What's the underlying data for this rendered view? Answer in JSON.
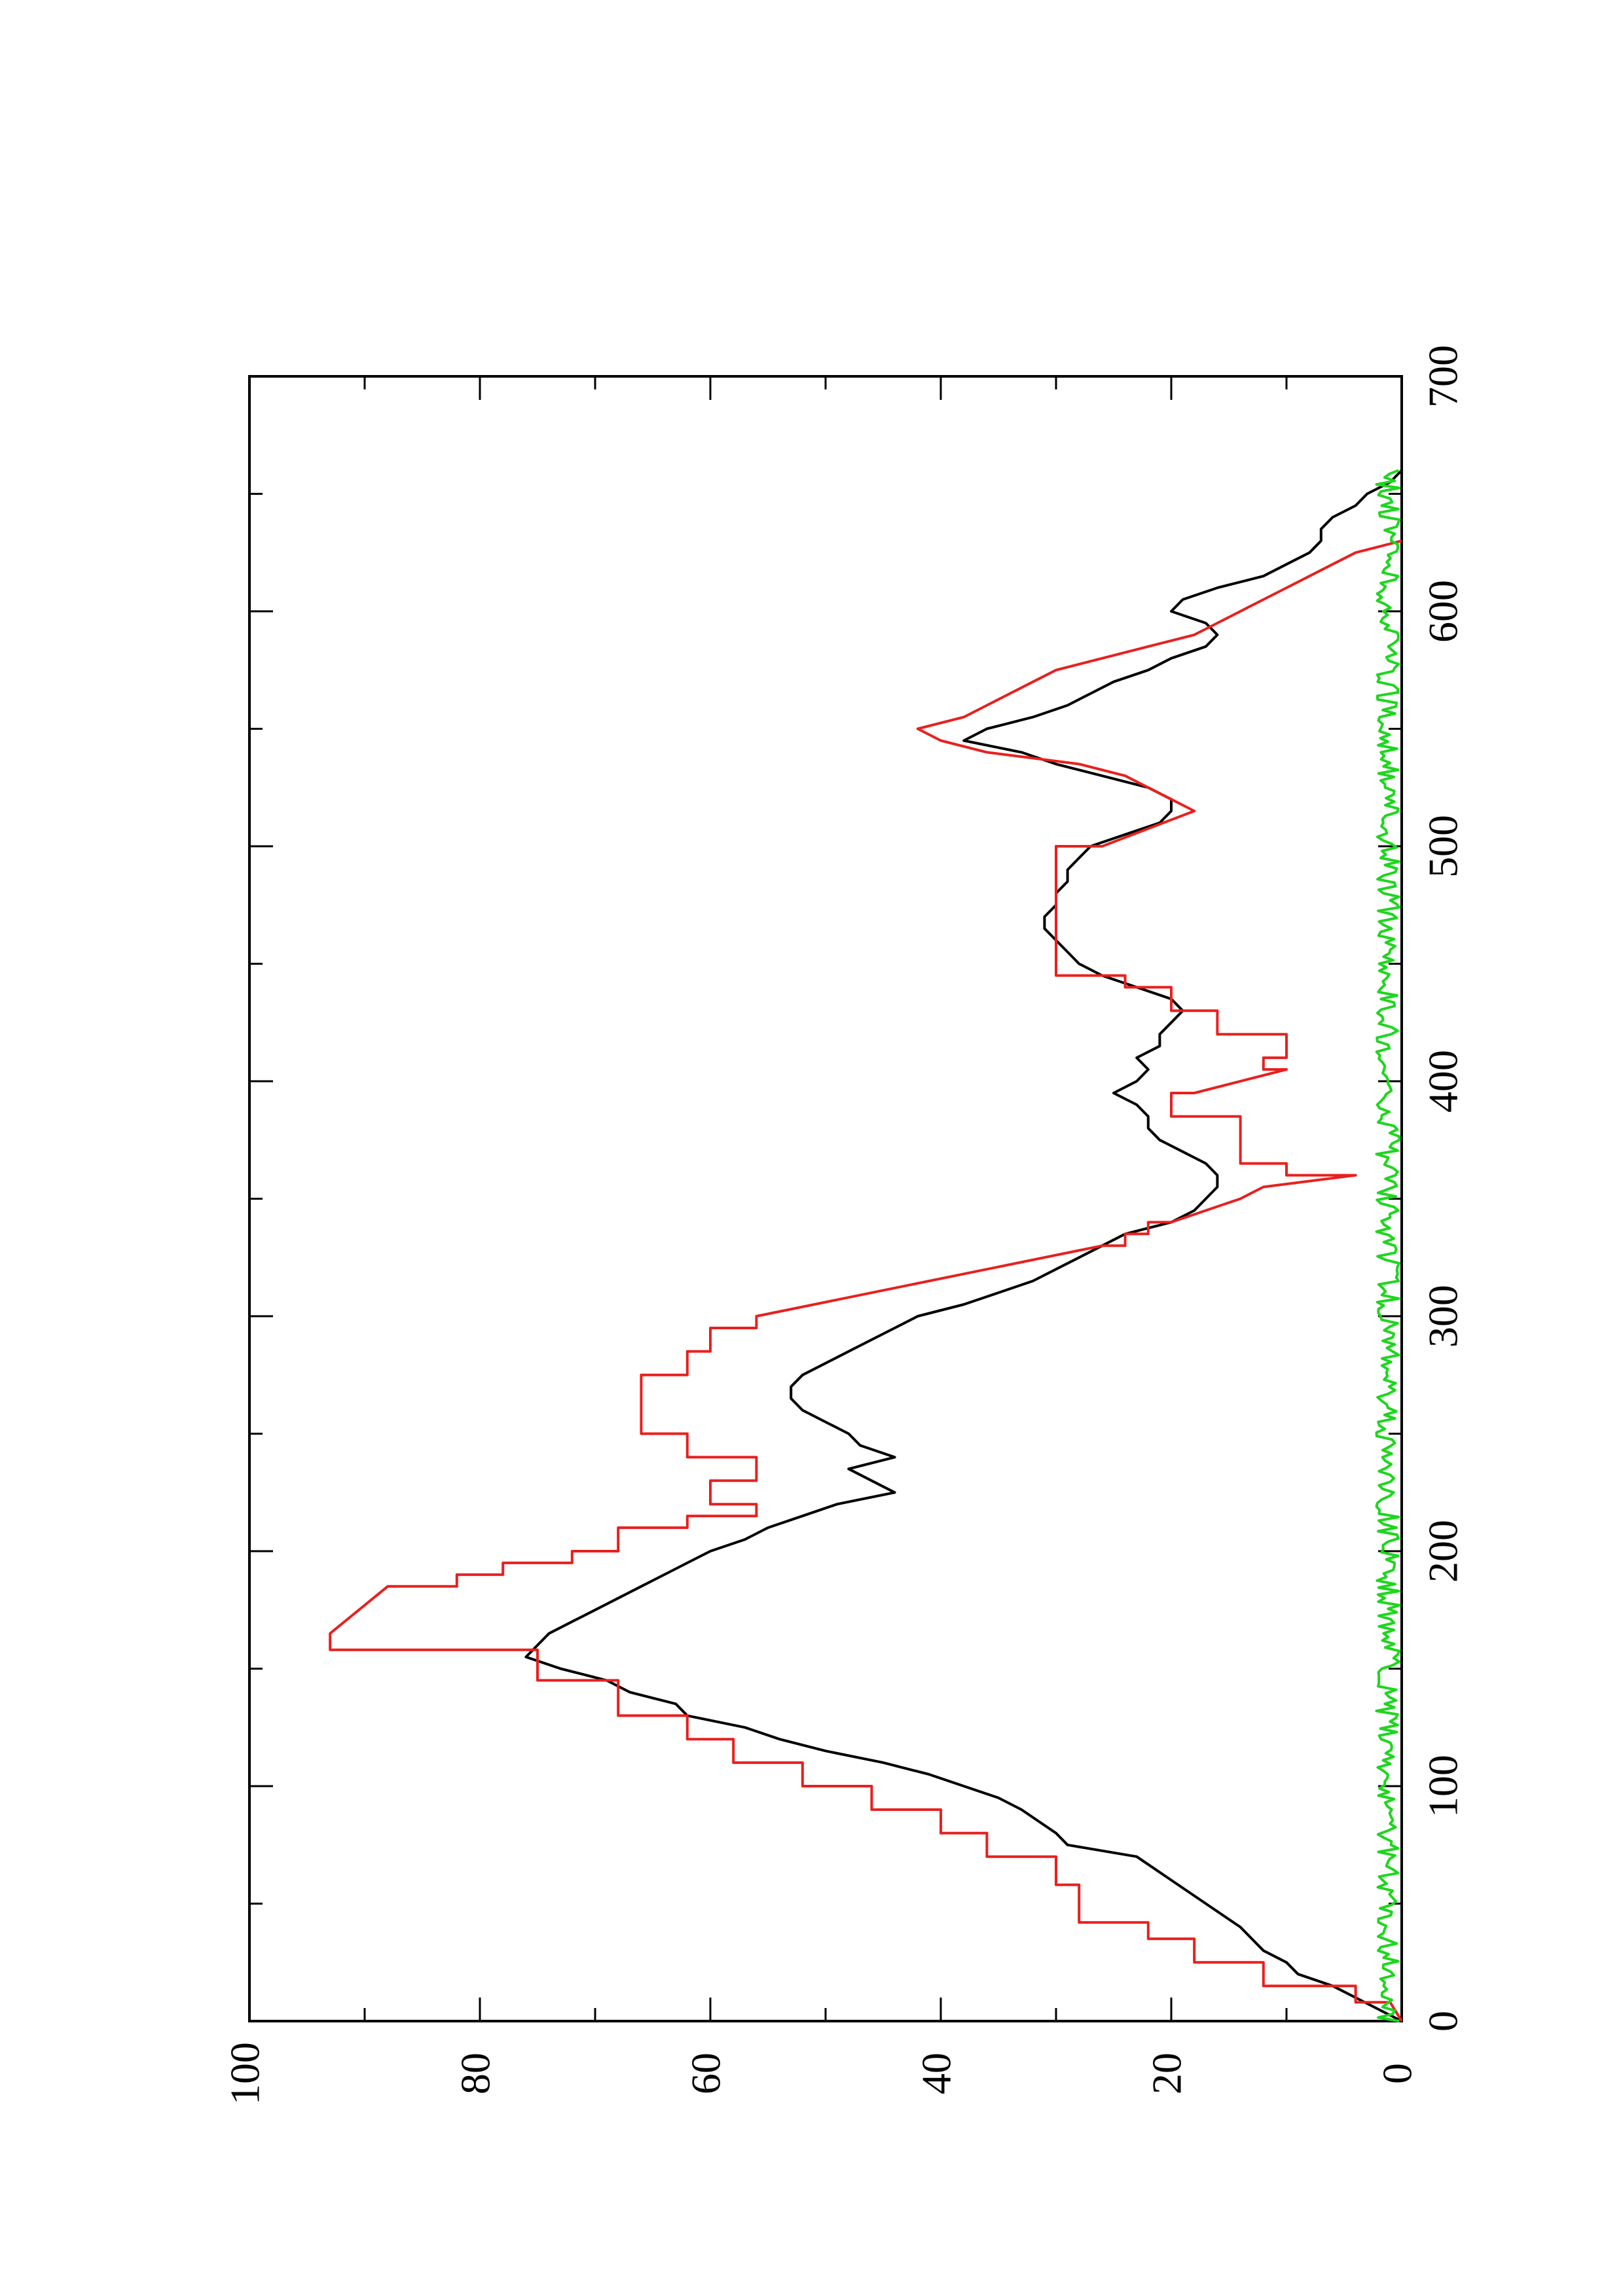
{
  "chart_data": {
    "type": "line",
    "orientation": "rotated-90-ccw",
    "title": "",
    "xlabel": "",
    "ylabel": "",
    "xlim": [
      0,
      700
    ],
    "ylim": [
      0,
      100
    ],
    "x_ticks": [
      0,
      100,
      200,
      300,
      400,
      500,
      600,
      700
    ],
    "y_ticks": [
      0,
      20,
      40,
      60,
      80,
      100
    ],
    "x_tick_labels": [
      "0",
      "100",
      "200",
      "300",
      "400",
      "500",
      "600",
      "700"
    ],
    "y_tick_labels": [
      "0",
      "20",
      "40",
      "60",
      "80",
      "100"
    ],
    "grid": false,
    "legend": "none",
    "series": [
      {
        "color": "#000000",
        "points": [
          [
            0,
            0
          ],
          [
            5,
            2
          ],
          [
            10,
            4
          ],
          [
            15,
            6
          ],
          [
            20,
            9
          ],
          [
            25,
            10
          ],
          [
            30,
            12
          ],
          [
            40,
            14
          ],
          [
            50,
            17
          ],
          [
            60,
            20
          ],
          [
            70,
            23
          ],
          [
            75,
            29
          ],
          [
            80,
            30
          ],
          [
            90,
            33
          ],
          [
            95,
            35
          ],
          [
            100,
            38
          ],
          [
            105,
            41
          ],
          [
            110,
            45
          ],
          [
            115,
            50
          ],
          [
            120,
            54
          ],
          [
            125,
            57
          ],
          [
            130,
            62
          ],
          [
            135,
            63
          ],
          [
            140,
            67
          ],
          [
            145,
            69
          ],
          [
            150,
            73
          ],
          [
            155,
            76
          ],
          [
            160,
            75
          ],
          [
            165,
            74
          ],
          [
            170,
            72
          ],
          [
            175,
            70
          ],
          [
            180,
            68
          ],
          [
            185,
            66
          ],
          [
            190,
            64
          ],
          [
            195,
            62
          ],
          [
            200,
            60
          ],
          [
            205,
            57
          ],
          [
            210,
            55
          ],
          [
            215,
            52
          ],
          [
            220,
            49
          ],
          [
            225,
            44
          ],
          [
            230,
            46
          ],
          [
            235,
            48
          ],
          [
            240,
            44
          ],
          [
            245,
            47
          ],
          [
            250,
            48
          ],
          [
            255,
            50
          ],
          [
            260,
            52
          ],
          [
            265,
            53
          ],
          [
            270,
            53
          ],
          [
            275,
            52
          ],
          [
            280,
            50
          ],
          [
            285,
            48
          ],
          [
            290,
            46
          ],
          [
            295,
            44
          ],
          [
            300,
            42
          ],
          [
            305,
            38
          ],
          [
            310,
            35
          ],
          [
            315,
            32
          ],
          [
            320,
            30
          ],
          [
            325,
            28
          ],
          [
            330,
            26
          ],
          [
            335,
            24
          ],
          [
            340,
            20
          ],
          [
            345,
            18
          ],
          [
            350,
            17
          ],
          [
            355,
            16
          ],
          [
            360,
            16
          ],
          [
            365,
            17
          ],
          [
            370,
            19
          ],
          [
            375,
            21
          ],
          [
            380,
            22
          ],
          [
            385,
            22
          ],
          [
            390,
            23
          ],
          [
            395,
            25
          ],
          [
            400,
            23
          ],
          [
            405,
            22
          ],
          [
            410,
            23
          ],
          [
            415,
            21
          ],
          [
            420,
            21
          ],
          [
            425,
            20
          ],
          [
            430,
            19
          ],
          [
            435,
            20
          ],
          [
            440,
            23
          ],
          [
            445,
            26
          ],
          [
            450,
            28
          ],
          [
            455,
            29
          ],
          [
            460,
            30
          ],
          [
            465,
            31
          ],
          [
            470,
            31
          ],
          [
            475,
            30
          ],
          [
            480,
            30
          ],
          [
            485,
            29
          ],
          [
            490,
            29
          ],
          [
            495,
            28
          ],
          [
            500,
            27
          ],
          [
            505,
            24
          ],
          [
            510,
            21
          ],
          [
            515,
            20
          ],
          [
            520,
            20
          ],
          [
            525,
            22
          ],
          [
            530,
            26
          ],
          [
            535,
            30
          ],
          [
            540,
            33
          ],
          [
            545,
            38
          ],
          [
            550,
            36
          ],
          [
            555,
            32
          ],
          [
            560,
            29
          ],
          [
            565,
            27
          ],
          [
            570,
            25
          ],
          [
            575,
            22
          ],
          [
            580,
            20
          ],
          [
            585,
            17
          ],
          [
            590,
            16
          ],
          [
            595,
            17
          ],
          [
            600,
            20
          ],
          [
            605,
            19
          ],
          [
            610,
            16
          ],
          [
            615,
            12
          ],
          [
            620,
            10
          ],
          [
            625,
            8
          ],
          [
            630,
            7
          ],
          [
            635,
            7
          ],
          [
            640,
            6
          ],
          [
            645,
            4
          ],
          [
            650,
            3
          ],
          [
            655,
            1
          ],
          [
            660,
            0
          ]
        ]
      },
      {
        "color": "#e8201e",
        "points": [
          [
            0,
            0
          ],
          [
            8,
            1
          ],
          [
            8,
            4
          ],
          [
            15,
            4
          ],
          [
            15,
            12
          ],
          [
            25,
            12
          ],
          [
            25,
            18
          ],
          [
            35,
            18
          ],
          [
            35,
            22
          ],
          [
            42,
            22
          ],
          [
            42,
            28
          ],
          [
            58,
            28
          ],
          [
            58,
            30
          ],
          [
            70,
            30
          ],
          [
            70,
            36
          ],
          [
            80,
            36
          ],
          [
            80,
            40
          ],
          [
            90,
            40
          ],
          [
            90,
            46
          ],
          [
            100,
            46
          ],
          [
            100,
            52
          ],
          [
            110,
            52
          ],
          [
            110,
            58
          ],
          [
            120,
            58
          ],
          [
            120,
            62
          ],
          [
            130,
            62
          ],
          [
            130,
            68
          ],
          [
            145,
            68
          ],
          [
            145,
            75
          ],
          [
            158,
            75
          ],
          [
            158,
            93
          ],
          [
            165,
            93
          ],
          [
            185,
            88
          ],
          [
            185,
            82
          ],
          [
            190,
            82
          ],
          [
            190,
            78
          ],
          [
            195,
            78
          ],
          [
            195,
            72
          ],
          [
            200,
            72
          ],
          [
            200,
            68
          ],
          [
            210,
            68
          ],
          [
            210,
            62
          ],
          [
            215,
            62
          ],
          [
            215,
            56
          ],
          [
            220,
            56
          ],
          [
            220,
            60
          ],
          [
            230,
            60
          ],
          [
            230,
            56
          ],
          [
            240,
            56
          ],
          [
            240,
            62
          ],
          [
            250,
            62
          ],
          [
            250,
            66
          ],
          [
            275,
            66
          ],
          [
            275,
            62
          ],
          [
            285,
            62
          ],
          [
            285,
            60
          ],
          [
            295,
            60
          ],
          [
            295,
            56
          ],
          [
            300,
            56
          ],
          [
            330,
            26
          ],
          [
            330,
            24
          ],
          [
            335,
            24
          ],
          [
            335,
            22
          ],
          [
            340,
            22
          ],
          [
            340,
            20
          ],
          [
            350,
            14
          ],
          [
            355,
            12
          ],
          [
            360,
            4
          ],
          [
            360,
            10
          ],
          [
            365,
            10
          ],
          [
            365,
            14
          ],
          [
            385,
            14
          ],
          [
            385,
            20
          ],
          [
            395,
            20
          ],
          [
            395,
            18
          ],
          [
            405,
            10
          ],
          [
            405,
            12
          ],
          [
            410,
            12
          ],
          [
            410,
            10
          ],
          [
            420,
            10
          ],
          [
            420,
            16
          ],
          [
            430,
            16
          ],
          [
            430,
            20
          ],
          [
            440,
            20
          ],
          [
            440,
            24
          ],
          [
            445,
            24
          ],
          [
            445,
            30
          ],
          [
            500,
            30
          ],
          [
            500,
            26
          ],
          [
            515,
            18
          ],
          [
            525,
            22
          ],
          [
            530,
            24
          ],
          [
            535,
            28
          ],
          [
            540,
            36
          ],
          [
            545,
            40
          ],
          [
            550,
            42
          ],
          [
            555,
            38
          ],
          [
            560,
            36
          ],
          [
            565,
            34
          ],
          [
            570,
            32
          ],
          [
            575,
            30
          ],
          [
            580,
            26
          ],
          [
            585,
            22
          ],
          [
            590,
            18
          ],
          [
            595,
            16
          ],
          [
            600,
            14
          ],
          [
            605,
            12
          ],
          [
            610,
            10
          ],
          [
            615,
            8
          ],
          [
            620,
            6
          ],
          [
            625,
            4
          ],
          [
            630,
            0
          ]
        ]
      },
      {
        "color": "#1ed61e",
        "noise": true,
        "seed": 7,
        "x_range": [
          0,
          660
        ],
        "mean": 1.2,
        "amplitude": 1.0
      }
    ]
  }
}
